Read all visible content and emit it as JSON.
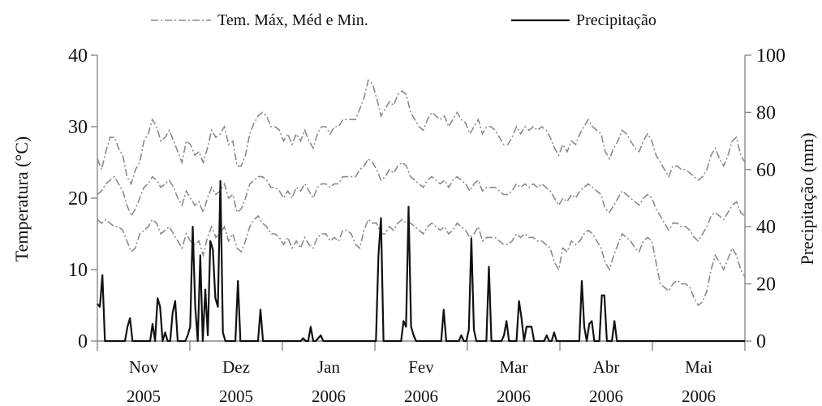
{
  "chart_data": {
    "type": "line",
    "legend": {
      "position": "top",
      "temp_label": "Tem. Máx, Méd e Min.",
      "precip_label": "Precipitação"
    },
    "left_axis": {
      "label": "Temperatura (°C)",
      "ylim": [
        0,
        40
      ],
      "ticks": [
        "0",
        "10",
        "20",
        "30",
        "40"
      ]
    },
    "right_axis": {
      "label": "Precipitação (mm)",
      "ylim": [
        0,
        100
      ],
      "ticks": [
        "0",
        "20",
        "40",
        "60",
        "80",
        "100"
      ]
    },
    "x_axis": {
      "months": [
        "Nov",
        "Dez",
        "Jan",
        "Fev",
        "Mar",
        "Abr",
        "Mai"
      ],
      "years": [
        "2005",
        "2005",
        "2006",
        "2006",
        "2006",
        "2006",
        "2006"
      ]
    },
    "grid": false,
    "series": [
      {
        "name": "Máx",
        "axis": "left",
        "style": "dash-dot",
        "values": [
          25.5,
          24,
          26.5,
          28.5,
          28.5,
          27,
          26,
          23,
          22,
          24,
          25,
          28,
          29,
          31,
          30,
          28,
          28.5,
          29.5,
          28,
          26.5,
          25,
          28,
          27.5,
          26,
          26.5,
          25,
          27,
          29.5,
          28.5,
          29,
          30,
          27.5,
          28,
          24.5,
          24.5,
          26,
          29,
          30.5,
          31.5,
          32,
          31.5,
          30,
          30,
          29.5,
          28,
          29,
          27.5,
          29,
          28,
          29.5,
          28,
          27,
          29,
          30,
          30,
          29,
          30,
          30,
          31,
          31,
          31,
          31,
          32.5,
          34,
          36.5,
          36,
          34,
          31.5,
          32.5,
          33.5,
          33,
          34.5,
          35,
          34.5,
          32,
          31,
          30,
          29.5,
          31,
          32,
          31.5,
          31,
          31.5,
          30,
          31,
          32,
          31,
          30.5,
          29,
          30,
          31,
          29,
          30,
          30,
          29.5,
          28.5,
          27.5,
          27.5,
          28.5,
          30,
          29,
          30,
          29.5,
          30,
          29.5,
          30,
          29.5,
          28.5,
          27,
          26,
          27.5,
          26.5,
          28,
          27.5,
          29,
          30,
          31,
          30,
          29.5,
          29,
          26.5,
          25.5,
          27,
          28,
          29.5,
          29,
          28,
          27,
          26.5,
          28,
          29,
          28,
          26,
          25,
          24,
          23,
          24.5,
          24.5,
          24,
          24,
          23.5,
          23,
          22.5,
          23,
          24,
          26,
          27,
          25.5,
          24.5,
          26,
          28,
          28.5,
          26,
          25
        ]
      },
      {
        "name": "Méd",
        "axis": "left",
        "style": "dash-dot",
        "values": [
          20.5,
          21,
          22,
          22.5,
          23,
          22,
          21,
          19,
          17.5,
          18.5,
          20,
          21.5,
          22,
          23,
          22.5,
          21.5,
          22,
          22.5,
          21.5,
          20,
          19,
          21,
          20,
          19,
          19.5,
          18,
          20,
          21.5,
          20.5,
          21,
          22,
          20,
          20.5,
          18,
          18.5,
          20,
          22,
          22.5,
          23,
          23,
          22.5,
          21.5,
          21.5,
          21,
          20,
          21,
          20,
          21.5,
          21,
          22,
          21,
          20,
          21.5,
          22,
          22,
          21.5,
          22,
          22,
          23,
          23,
          23,
          23,
          24,
          24.5,
          25.5,
          25,
          24,
          22.5,
          23,
          24,
          23.5,
          24.5,
          25,
          24.5,
          23,
          22.5,
          22,
          21.5,
          22.5,
          23,
          22.5,
          22,
          22.5,
          21.5,
          22.5,
          23,
          22.5,
          22,
          21,
          22,
          22.5,
          21,
          21.5,
          21.5,
          21.5,
          21,
          20.5,
          20.5,
          21,
          22,
          21.5,
          22,
          21.5,
          22,
          21.5,
          22,
          21.5,
          21,
          20,
          19,
          20,
          19.5,
          20.5,
          20,
          21,
          21.5,
          22,
          21.5,
          21,
          20.5,
          18.5,
          18,
          19,
          20,
          21,
          20.5,
          20,
          19.5,
          19,
          20,
          20.5,
          20,
          18.5,
          17.5,
          16.5,
          15.5,
          16.5,
          16.5,
          16,
          16,
          15.5,
          14.5,
          14,
          15,
          16,
          17.5,
          18,
          17.5,
          17,
          18,
          19,
          19.5,
          18,
          17.5
        ]
      },
      {
        "name": "Min",
        "axis": "left",
        "style": "dash-dot",
        "values": [
          17,
          16.5,
          17,
          16.5,
          16,
          16,
          15.5,
          14,
          12.5,
          13,
          15,
          15.5,
          16,
          17,
          16.5,
          15,
          15.5,
          16,
          15,
          14,
          13,
          15,
          14,
          13.5,
          14,
          12,
          14.5,
          16,
          14.5,
          15,
          16,
          14,
          15,
          13,
          12.5,
          14,
          16,
          17,
          17.5,
          16.5,
          16,
          15,
          15,
          14.5,
          13.5,
          14.5,
          13,
          14,
          13,
          14.5,
          13.5,
          13,
          14.5,
          15,
          15,
          14,
          14.5,
          14,
          15.5,
          15.5,
          15,
          13.5,
          13,
          15.5,
          17,
          16.5,
          16.5,
          15,
          15,
          16,
          15.5,
          16.5,
          17,
          16.5,
          16.5,
          16,
          15.5,
          15,
          16,
          16.5,
          16,
          15.5,
          16,
          15,
          15.5,
          16.5,
          16,
          15.5,
          14.5,
          15,
          16,
          14,
          14.5,
          14.5,
          14.5,
          14,
          13.5,
          13.5,
          14,
          15,
          14.5,
          15,
          14.5,
          14.5,
          14,
          14,
          13.5,
          13,
          11,
          10,
          13,
          12.5,
          14,
          13.5,
          14,
          15,
          15.5,
          15,
          14,
          13,
          11,
          10,
          12,
          13.5,
          15,
          14.5,
          14,
          13,
          12.5,
          14,
          14.5,
          14,
          11,
          8,
          7.5,
          7,
          8,
          8.5,
          8,
          8,
          7.5,
          6,
          5,
          5.5,
          7,
          10,
          12,
          11,
          10,
          11.5,
          13,
          12,
          10,
          9
        ]
      },
      {
        "name": "Precipitação",
        "axis": "right",
        "style": "solid",
        "values": [
          13,
          12,
          23,
          0,
          0,
          0,
          0,
          0,
          0,
          0,
          0,
          0,
          5,
          8,
          0,
          0,
          0,
          0,
          0,
          0,
          0,
          0,
          6,
          0,
          15,
          12,
          0,
          3,
          0,
          0,
          10,
          14,
          0,
          0,
          0,
          0,
          2,
          5,
          40,
          12,
          0,
          30,
          0,
          18,
          2,
          35,
          32,
          15,
          12,
          56,
          3,
          0,
          0,
          0,
          0,
          0,
          21,
          0,
          0,
          0,
          0,
          0,
          0,
          0,
          0,
          11,
          0,
          0,
          0,
          0,
          0,
          0,
          0,
          0,
          0,
          0,
          0,
          0,
          0,
          0,
          0,
          0,
          1,
          0,
          0,
          5,
          0,
          0,
          1,
          2,
          0,
          0,
          0,
          0,
          0,
          0,
          0,
          0,
          0,
          0,
          0,
          0,
          0,
          0,
          0,
          0,
          0,
          0,
          0,
          0,
          0,
          0,
          30,
          43,
          0,
          0,
          0,
          0,
          0,
          0,
          0,
          0,
          7,
          5,
          47,
          5,
          2,
          0,
          0,
          0,
          0,
          0,
          0,
          0,
          0,
          0,
          0,
          0,
          11,
          0,
          0,
          0,
          0,
          0,
          0,
          2,
          0,
          0,
          4,
          36,
          4,
          0,
          0,
          0,
          0,
          0,
          26,
          0,
          0,
          0,
          0,
          0,
          2,
          7,
          0,
          0,
          0,
          0,
          14,
          8,
          0,
          5,
          5,
          5,
          0,
          0,
          0,
          0,
          0,
          2,
          0,
          0,
          3,
          0,
          0,
          0,
          0,
          0,
          0,
          0,
          0,
          0,
          0,
          21,
          5,
          0,
          6,
          7,
          0,
          0,
          0,
          16,
          16,
          0,
          0,
          0,
          7,
          0,
          0,
          0,
          0,
          0,
          0,
          0,
          0,
          0,
          0,
          0,
          0,
          0,
          0,
          0,
          0,
          0,
          0,
          0,
          0,
          0,
          0,
          0,
          0,
          0,
          0,
          0,
          0,
          0,
          0,
          0,
          0,
          0,
          0,
          0,
          0,
          0,
          0,
          0,
          0,
          0,
          0,
          0,
          0,
          0,
          0,
          0,
          0,
          0,
          0,
          0,
          0
        ]
      }
    ]
  }
}
